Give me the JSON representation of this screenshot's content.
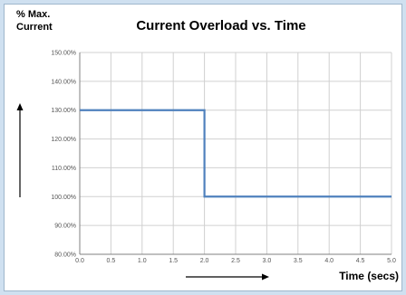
{
  "chart_data": {
    "type": "line",
    "title": "Current Overload vs. Time",
    "ylabel": "% Max. Current",
    "ylabel_lines": [
      "% Max.",
      "Current"
    ],
    "xlabel": "Time (secs)",
    "xlim": [
      0.0,
      5.0
    ],
    "ylim": [
      80,
      150
    ],
    "x_ticks": [
      "0.0",
      "0.5",
      "1.0",
      "1.5",
      "2.0",
      "2.5",
      "3.0",
      "3.5",
      "4.0",
      "4.5",
      "5.0"
    ],
    "y_ticks": [
      "80.00%",
      "90.00%",
      "100.00%",
      "110.00%",
      "120.00%",
      "130.00%",
      "140.00%",
      "150.00%"
    ],
    "grid": true,
    "series": [
      {
        "points": [
          [
            0.0,
            130
          ],
          [
            2.0,
            130
          ],
          [
            2.0,
            100
          ],
          [
            5.0,
            100
          ]
        ],
        "color": "#4f81bd"
      }
    ]
  },
  "colors": {
    "background": "#cfe0f0",
    "grid": "#d0d0d0",
    "axis": "#808080",
    "arrow": "#000000"
  }
}
